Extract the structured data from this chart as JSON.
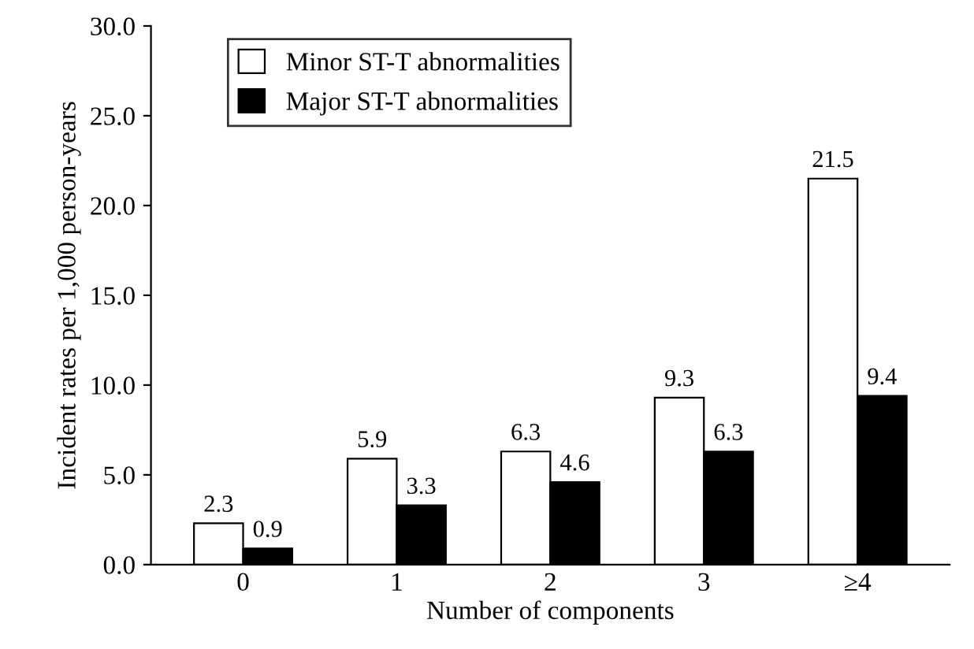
{
  "chart_data": {
    "type": "bar",
    "xlabel": "Number of components",
    "ylabel": "Incident rates per 1,000 person-years",
    "categories": [
      "0",
      "1",
      "2",
      "3",
      "≥4"
    ],
    "series": [
      {
        "name": "Minor ST-T abnormalities",
        "color": "#ffffff",
        "values": [
          2.3,
          5.9,
          6.3,
          9.3,
          21.5
        ]
      },
      {
        "name": "Major ST-T abnormalities",
        "color": "#000000",
        "values": [
          0.9,
          3.3,
          4.6,
          6.3,
          9.4
        ]
      }
    ],
    "ylim": [
      0,
      30
    ],
    "yticks": [
      {
        "value": 0,
        "label": "0.0"
      },
      {
        "value": 5,
        "label": "5.0"
      },
      {
        "value": 10,
        "label": "10.0"
      },
      {
        "value": 15,
        "label": "15.0"
      },
      {
        "value": 20,
        "label": "20.0"
      },
      {
        "value": 25,
        "label": "25.0"
      },
      {
        "value": 30,
        "label": "30.0"
      }
    ],
    "data_labels": true,
    "legend": "top left",
    "grid": false
  }
}
